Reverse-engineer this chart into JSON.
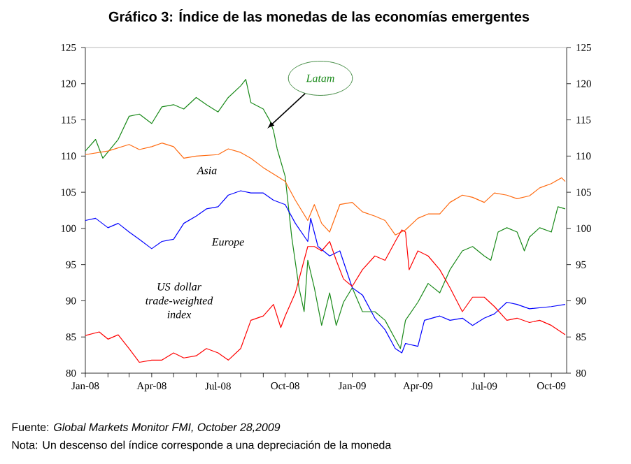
{
  "chart_data": {
    "type": "line",
    "title": "Gráfico 3: Índice de las monedas de las economías emergentes",
    "annotations": [
      "Fuente: *Global Markets Monitor FMI, October 28,2009*",
      "Nota: Un descenso del índice corresponde a una depreciación de la moneda"
    ],
    "xlim": [
      "2008-01-01",
      "2009-10-22"
    ],
    "xticks": [
      {
        "value": "2008-01",
        "label": "Jan-08"
      },
      {
        "value": "2008-02",
        "label": null
      },
      {
        "value": "2008-03",
        "label": null
      },
      {
        "value": "2008-04",
        "label": "Apr-08"
      },
      {
        "value": "2008-05",
        "label": null
      },
      {
        "value": "2008-06",
        "label": null
      },
      {
        "value": "2008-07",
        "label": "Jul-08"
      },
      {
        "value": "2008-08",
        "label": null
      },
      {
        "value": "2008-09",
        "label": null
      },
      {
        "value": "2008-10",
        "label": "Oct-08"
      },
      {
        "value": "2008-11",
        "label": null
      },
      {
        "value": "2008-12",
        "label": null
      },
      {
        "value": "2009-01",
        "label": "Jan-09"
      },
      {
        "value": "2009-02",
        "label": null
      },
      {
        "value": "2009-03",
        "label": null
      },
      {
        "value": "2009-04",
        "label": "Apr-09"
      },
      {
        "value": "2009-05",
        "label": null
      },
      {
        "value": "2009-06",
        "label": null
      },
      {
        "value": "2009-07",
        "label": "Jul-09"
      },
      {
        "value": "2009-08",
        "label": null
      },
      {
        "value": "2009-09",
        "label": null
      },
      {
        "value": "2009-10",
        "label": "Oct-09"
      }
    ],
    "ylim": [
      80,
      125
    ],
    "yticks": [
      80,
      85,
      90,
      95,
      100,
      105,
      110,
      115,
      120,
      125
    ],
    "y2lim": [
      80,
      125
    ],
    "y2ticks": [
      80,
      85,
      90,
      95,
      100,
      105,
      110,
      115,
      120,
      125
    ],
    "grid": false,
    "legend": false,
    "marker": "none",
    "line_style": "solid",
    "series": [
      {
        "name": "Latam",
        "color": "#1a8a1a",
        "x": [
          "2008-01-01",
          "2008-01-15",
          "2008-01-25",
          "2008-02-15",
          "2008-03-01",
          "2008-03-15",
          "2008-04-01",
          "2008-04-15",
          "2008-05-01",
          "2008-05-15",
          "2008-06-01",
          "2008-06-15",
          "2008-07-01",
          "2008-07-15",
          "2008-08-01",
          "2008-08-08",
          "2008-08-15",
          "2008-09-01",
          "2008-09-10",
          "2008-09-15",
          "2008-09-20",
          "2008-10-01",
          "2008-10-10",
          "2008-10-20",
          "2008-10-27",
          "2008-11-01",
          "2008-11-10",
          "2008-11-20",
          "2008-12-01",
          "2008-12-10",
          "2008-12-20",
          "2009-01-01",
          "2009-01-15",
          "2009-02-01",
          "2009-02-15",
          "2009-03-01",
          "2009-03-08",
          "2009-03-15",
          "2009-04-01",
          "2009-04-15",
          "2009-05-01",
          "2009-05-15",
          "2009-06-01",
          "2009-06-15",
          "2009-07-01",
          "2009-07-10",
          "2009-07-20",
          "2009-08-01",
          "2009-08-15",
          "2009-08-25",
          "2009-09-01",
          "2009-09-15",
          "2009-10-01",
          "2009-10-10",
          "2009-10-20"
        ],
        "values": [
          110.7,
          112.3,
          109.7,
          112.3,
          115.5,
          115.8,
          114.5,
          116.8,
          117.1,
          116.5,
          118.1,
          117.1,
          116.1,
          118.1,
          119.7,
          120.6,
          117.4,
          116.5,
          114.9,
          113.5,
          111.0,
          107.2,
          98.8,
          91.8,
          88.5,
          95.6,
          91.8,
          86.6,
          91.1,
          86.6,
          89.8,
          91.8,
          88.5,
          88.5,
          87.3,
          84.7,
          83.4,
          87.3,
          89.8,
          92.4,
          91.1,
          94.3,
          96.9,
          97.5,
          96.2,
          95.6,
          99.5,
          100.1,
          99.5,
          96.9,
          98.8,
          100.1,
          99.5,
          103.0,
          102.7
        ]
      },
      {
        "name": "Asia",
        "color": "#ff6a10",
        "x": [
          "2008-01-01",
          "2008-02-01",
          "2008-03-01",
          "2008-03-15",
          "2008-04-01",
          "2008-04-15",
          "2008-05-01",
          "2008-05-15",
          "2008-06-01",
          "2008-07-01",
          "2008-07-15",
          "2008-08-01",
          "2008-08-15",
          "2008-09-01",
          "2008-09-20",
          "2008-10-01",
          "2008-10-15",
          "2008-11-01",
          "2008-11-10",
          "2008-11-20",
          "2008-12-01",
          "2008-12-15",
          "2009-01-01",
          "2009-01-15",
          "2009-02-01",
          "2009-02-15",
          "2009-03-01",
          "2009-03-15",
          "2009-04-01",
          "2009-04-15",
          "2009-05-01",
          "2009-05-15",
          "2009-06-01",
          "2009-06-15",
          "2009-07-01",
          "2009-07-15",
          "2009-08-01",
          "2009-08-15",
          "2009-09-01",
          "2009-09-15",
          "2009-10-01",
          "2009-10-15",
          "2009-10-20"
        ],
        "values": [
          110.2,
          110.7,
          111.6,
          110.9,
          111.3,
          111.8,
          111.3,
          109.7,
          110.0,
          110.2,
          111.0,
          110.5,
          109.7,
          108.4,
          107.2,
          106.5,
          103.9,
          101.1,
          103.3,
          100.7,
          99.5,
          103.3,
          103.6,
          102.3,
          101.7,
          101.1,
          99.1,
          99.8,
          101.4,
          102.0,
          102.0,
          103.6,
          104.6,
          104.3,
          103.6,
          104.9,
          104.6,
          104.1,
          104.5,
          105.6,
          106.2,
          107.0,
          106.5
        ]
      },
      {
        "name": "Europe",
        "color": "#0000ff",
        "x": [
          "2008-01-01",
          "2008-01-15",
          "2008-02-01",
          "2008-02-15",
          "2008-03-01",
          "2008-03-15",
          "2008-04-01",
          "2008-04-15",
          "2008-05-01",
          "2008-05-15",
          "2008-06-01",
          "2008-06-15",
          "2008-07-01",
          "2008-07-15",
          "2008-08-01",
          "2008-08-15",
          "2008-09-01",
          "2008-09-15",
          "2008-10-01",
          "2008-10-15",
          "2008-11-01",
          "2008-11-05",
          "2008-11-15",
          "2008-12-01",
          "2008-12-15",
          "2009-01-01",
          "2009-01-15",
          "2009-02-01",
          "2009-02-15",
          "2009-03-01",
          "2009-03-10",
          "2009-03-15",
          "2009-04-01",
          "2009-04-10",
          "2009-05-01",
          "2009-05-15",
          "2009-06-01",
          "2009-06-15",
          "2009-07-01",
          "2009-07-15",
          "2009-08-01",
          "2009-08-15",
          "2009-09-01",
          "2009-10-01",
          "2009-10-20"
        ],
        "values": [
          101.1,
          101.4,
          100.1,
          100.7,
          99.5,
          98.5,
          97.2,
          98.2,
          98.5,
          100.7,
          101.7,
          102.7,
          103.0,
          104.6,
          105.2,
          104.9,
          104.9,
          103.9,
          103.3,
          100.7,
          98.2,
          101.4,
          97.5,
          96.2,
          96.9,
          91.8,
          90.8,
          87.6,
          86.0,
          83.4,
          82.8,
          84.1,
          83.7,
          87.3,
          87.9,
          87.3,
          87.6,
          86.6,
          87.6,
          88.2,
          89.8,
          89.5,
          88.9,
          89.2,
          89.5
        ]
      },
      {
        "name": "US dollar trade-weighted index",
        "color": "#ff0000",
        "x": [
          "2008-01-01",
          "2008-01-20",
          "2008-02-01",
          "2008-02-15",
          "2008-03-01",
          "2008-03-15",
          "2008-04-01",
          "2008-04-15",
          "2008-05-01",
          "2008-05-15",
          "2008-06-01",
          "2008-06-15",
          "2008-07-01",
          "2008-07-15",
          "2008-08-01",
          "2008-08-15",
          "2008-09-01",
          "2008-09-15",
          "2008-09-25",
          "2008-10-01",
          "2008-10-15",
          "2008-11-01",
          "2008-11-10",
          "2008-11-20",
          "2008-12-01",
          "2008-12-10",
          "2008-12-20",
          "2009-01-01",
          "2009-01-15",
          "2009-02-01",
          "2009-02-15",
          "2009-03-01",
          "2009-03-10",
          "2009-03-15",
          "2009-03-20",
          "2009-04-01",
          "2009-04-15",
          "2009-05-01",
          "2009-05-15",
          "2009-06-01",
          "2009-06-15",
          "2009-07-01",
          "2009-07-15",
          "2009-08-01",
          "2009-08-15",
          "2009-09-01",
          "2009-09-15",
          "2009-10-01",
          "2009-10-20"
        ],
        "values": [
          85.2,
          85.7,
          84.7,
          85.3,
          83.4,
          81.5,
          81.8,
          81.8,
          82.8,
          82.1,
          82.4,
          83.4,
          82.8,
          81.8,
          83.4,
          87.3,
          87.9,
          89.5,
          86.3,
          87.9,
          91.1,
          97.5,
          97.5,
          96.9,
          98.2,
          95.6,
          93.0,
          92.0,
          94.3,
          96.2,
          95.6,
          98.2,
          99.8,
          99.5,
          94.3,
          96.9,
          96.2,
          94.3,
          91.8,
          88.5,
          90.5,
          90.5,
          89.2,
          87.3,
          87.6,
          87.0,
          87.3,
          86.6,
          85.3
        ]
      }
    ]
  }
}
